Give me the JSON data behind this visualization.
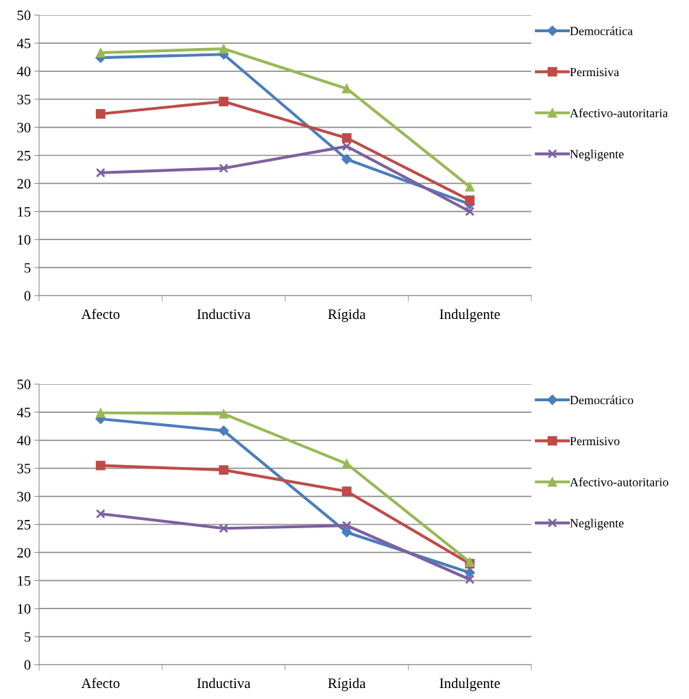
{
  "chart_data": [
    {
      "type": "line",
      "categories": [
        "Afecto",
        "Inductiva",
        "Rígida",
        "Indulgente"
      ],
      "ylim": [
        0,
        50
      ],
      "yticks": [
        0,
        5,
        10,
        15,
        20,
        25,
        30,
        35,
        40,
        45,
        50
      ],
      "grid": "y",
      "legend": "right",
      "series": [
        {
          "name": "Democrática",
          "color": "#4a7ebb",
          "marker": "diamond",
          "values": [
            42.4,
            43.0,
            24.3,
            16.3
          ]
        },
        {
          "name": "Permisiva",
          "color": "#be4b48",
          "marker": "square",
          "values": [
            32.4,
            34.6,
            28.1,
            17.0
          ]
        },
        {
          "name": "Afectivo-autoritaria",
          "color": "#98b954",
          "marker": "triangle",
          "values": [
            43.3,
            44.0,
            36.9,
            19.4
          ]
        },
        {
          "name": "Negligente",
          "color": "#7d60a0",
          "marker": "cross",
          "values": [
            21.9,
            22.7,
            26.6,
            15.0
          ]
        }
      ]
    },
    {
      "type": "line",
      "categories": [
        "Afecto",
        "Inductiva",
        "Rígida",
        "Indulgente"
      ],
      "ylim": [
        0,
        50
      ],
      "yticks": [
        0,
        5,
        10,
        15,
        20,
        25,
        30,
        35,
        40,
        45,
        50
      ],
      "grid": "y",
      "legend": "right",
      "series": [
        {
          "name": "Democrático",
          "color": "#4a7ebb",
          "marker": "diamond",
          "values": [
            43.8,
            41.7,
            23.6,
            16.4
          ]
        },
        {
          "name": "Permisivo",
          "color": "#be4b48",
          "marker": "square",
          "values": [
            35.5,
            34.7,
            30.9,
            18.0
          ]
        },
        {
          "name": "Afectivo-autoritario",
          "color": "#98b954",
          "marker": "triangle",
          "values": [
            44.9,
            44.7,
            35.8,
            18.3
          ]
        },
        {
          "name": "Negligente",
          "color": "#7d60a0",
          "marker": "cross",
          "values": [
            26.9,
            24.3,
            24.8,
            15.2
          ]
        }
      ]
    }
  ]
}
